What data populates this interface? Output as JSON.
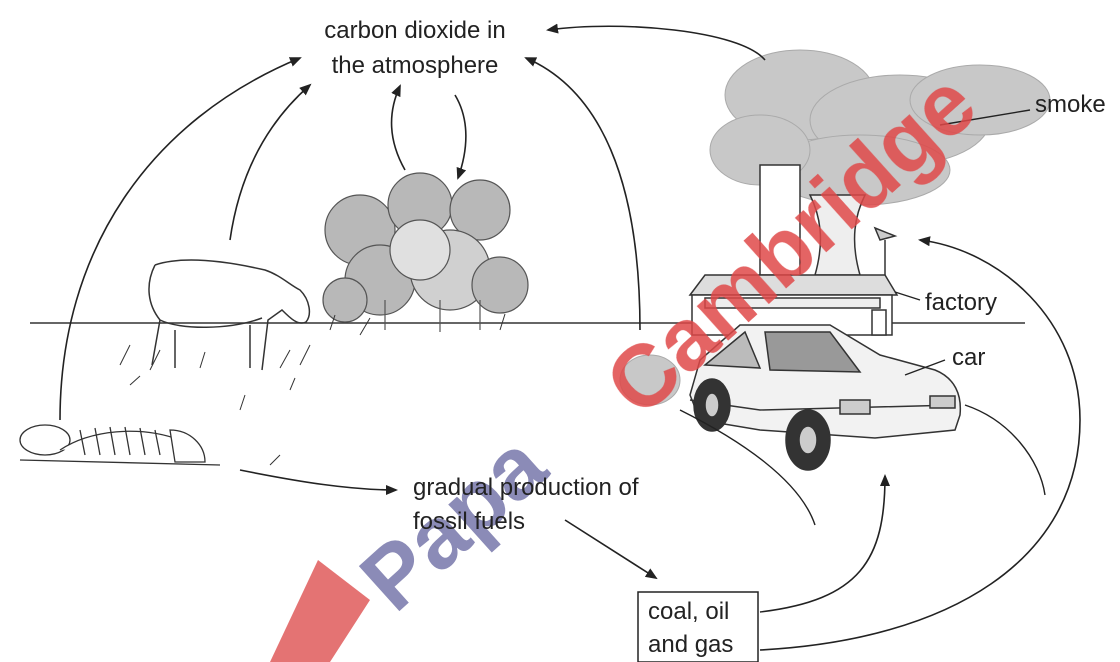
{
  "labels": {
    "atmosphere": [
      "carbon dioxide in",
      "the atmosphere"
    ],
    "smoke": "smoke",
    "factory": "factory",
    "car": "car",
    "fossil": [
      "gradual production of",
      "fossil fuels"
    ],
    "fuels": [
      "coal, oil",
      "and gas"
    ]
  },
  "watermark": {
    "first": "Papa",
    "second": "Cambridge"
  }
}
